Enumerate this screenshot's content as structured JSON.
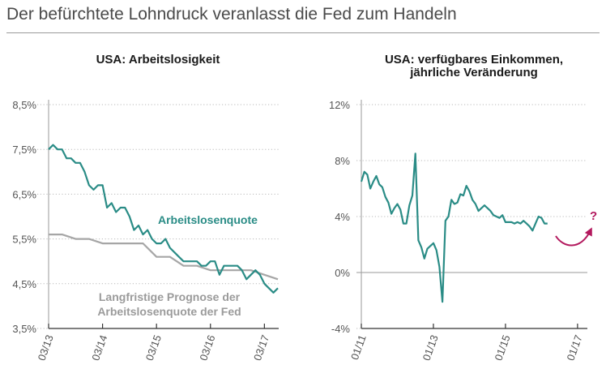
{
  "headline": "Der befürchtete Lohndruck veranlasst die Fed zum Handeln",
  "chart_data": [
    {
      "type": "line",
      "title": "USA: Arbeitslosigkeit",
      "yticks": [
        "8,5%",
        "7,5%",
        "6,5%",
        "5,5%",
        "4,5%",
        "3,5%"
      ],
      "ylim": [
        3.5,
        8.5
      ],
      "xlim": [
        0,
        51
      ],
      "xticks": [
        {
          "x": 0,
          "label": "03/13"
        },
        {
          "x": 12,
          "label": "03/14"
        },
        {
          "x": 24,
          "label": "03/15"
        },
        {
          "x": 36,
          "label": "03/16"
        },
        {
          "x": 48,
          "label": "03/17"
        }
      ],
      "series": [
        {
          "name": "Arbeitslosenquote",
          "color": "#2a8c86",
          "values": [
            7.5,
            7.6,
            7.5,
            7.5,
            7.3,
            7.3,
            7.2,
            7.2,
            7.0,
            6.7,
            6.6,
            6.7,
            6.7,
            6.2,
            6.3,
            6.1,
            6.2,
            6.2,
            6.0,
            5.7,
            5.8,
            5.6,
            5.7,
            5.5,
            5.4,
            5.4,
            5.5,
            5.3,
            5.2,
            5.1,
            5.0,
            5.0,
            5.0,
            5.0,
            4.9,
            4.9,
            5.0,
            5.0,
            4.7,
            4.9,
            4.9,
            4.9,
            4.9,
            4.8,
            4.6,
            4.7,
            4.8,
            4.7,
            4.5,
            4.4,
            4.3,
            4.4
          ]
        },
        {
          "name": "Langfristige Prognose der Arbeitslosenquote der Fed",
          "color": "#a6a6a6",
          "x": [
            0,
            3,
            6,
            9,
            12,
            15,
            18,
            21,
            24,
            27,
            30,
            33,
            36,
            39,
            42,
            45,
            48,
            51
          ],
          "values": [
            5.6,
            5.6,
            5.5,
            5.5,
            5.4,
            5.4,
            5.4,
            5.4,
            5.1,
            5.1,
            4.9,
            4.9,
            4.8,
            4.8,
            4.8,
            4.8,
            4.7,
            4.6
          ]
        }
      ],
      "annotations": [
        "Arbeitslosenquote",
        "Langfristige Prognose der",
        "Arbeitslosenquote der Fed"
      ]
    },
    {
      "type": "line",
      "title_lines": [
        "USA: verfügbares Einkommen,",
        "jährliche Veränderung"
      ],
      "yticks": [
        "12%",
        "8%",
        "4%",
        "0%",
        "-4%"
      ],
      "ylim": [
        -4,
        12
      ],
      "xlim": [
        0,
        75
      ],
      "xticks": [
        {
          "x": 0,
          "label": "01/11"
        },
        {
          "x": 24,
          "label": "01/13"
        },
        {
          "x": 48,
          "label": "01/15"
        },
        {
          "x": 72,
          "label": "01/17"
        }
      ],
      "series": [
        {
          "name": "verfügbares Einkommen",
          "color": "#2a8c86",
          "values": [
            6.5,
            7.2,
            7.0,
            6.0,
            6.5,
            6.9,
            6.3,
            6.1,
            5.4,
            5.0,
            4.2,
            4.6,
            4.9,
            4.5,
            3.5,
            3.5,
            4.8,
            5.5,
            8.5,
            2.3,
            1.8,
            1.0,
            1.7,
            1.9,
            2.1,
            1.6,
            0.4,
            -2.1,
            3.7,
            4.0,
            5.2,
            4.9,
            5.0,
            5.6,
            5.5,
            6.2,
            5.8,
            5.2,
            4.9,
            4.4,
            4.6,
            4.8,
            4.6,
            4.4,
            4.1,
            4.0,
            3.9,
            4.1,
            3.6,
            3.6,
            3.6,
            3.5,
            3.6,
            3.5,
            3.7,
            3.5,
            3.3,
            3.0,
            3.5,
            4.0,
            3.9,
            3.5,
            3.5
          ]
        }
      ],
      "annotations": [
        "?"
      ]
    }
  ]
}
